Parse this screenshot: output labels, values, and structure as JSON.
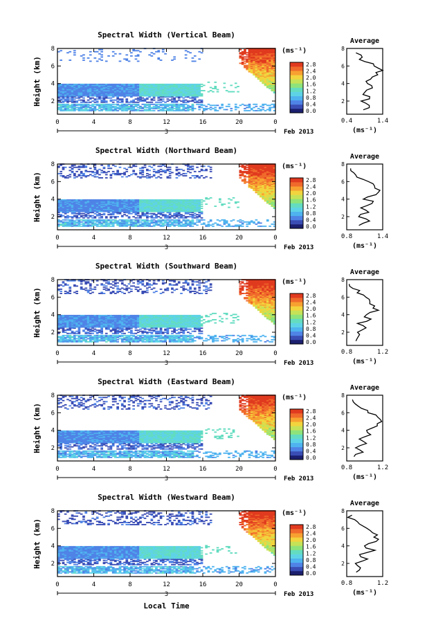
{
  "colors": {
    "scale": [
      "#1b1f6e",
      "#3a4db5",
      "#4f83e6",
      "#4fb3ef",
      "#5ed3e6",
      "#63dcc0",
      "#8ee37a",
      "#c6e257",
      "#f2d43e",
      "#f7a131",
      "#f06a2b",
      "#e03a1f"
    ],
    "axis": "#000000"
  },
  "common": {
    "colorbar_unit": "(ms⁻¹)",
    "colorbar_ticks": [
      "2.8",
      "2.4",
      "2.0",
      "1.6",
      "1.2",
      "0.8",
      "0.4",
      "0.0"
    ],
    "date_label": "Feb 2013",
    "day_label": "3",
    "avg_title": "Average",
    "avg_unit": "(ms⁻¹)",
    "xlabel": "Local Time",
    "ylabel": "Height (km)"
  },
  "chart_data": [
    {
      "type": "heatmap",
      "title": "Spectral Width (Vertical Beam)",
      "ylabel": "Height (km)",
      "x_ticks": [
        "0",
        "4",
        "8",
        "12",
        "16",
        "20",
        "0"
      ],
      "y_ticks": [
        "8",
        "6",
        "4",
        "2"
      ],
      "ylim": [
        0.5,
        8
      ],
      "xlim": [
        0,
        24
      ],
      "colorbar": {
        "unit": "(ms⁻¹)",
        "range": [
          0.0,
          2.8
        ]
      },
      "average_profile": {
        "title": "Average",
        "x_ticks": [
          "0.4",
          "1.4"
        ],
        "xlim": [
          0.4,
          1.4
        ],
        "y_ticks": [
          "8",
          "6",
          "4",
          "2"
        ],
        "height_km": [
          1.0,
          1.5,
          2.0,
          2.5,
          3.0,
          3.5,
          4.0,
          4.5,
          5.0,
          5.5,
          6.0,
          6.5,
          7.0,
          7.5
        ],
        "value": [
          0.9,
          1.0,
          0.85,
          1.05,
          0.9,
          1.1,
          0.95,
          1.1,
          1.25,
          1.4,
          1.15,
          0.95,
          0.8,
          0.7
        ]
      }
    },
    {
      "type": "heatmap",
      "title": "Spectral Width (Northward Beam)",
      "ylabel": "Height (km)",
      "x_ticks": [
        "0",
        "4",
        "8",
        "12",
        "16",
        "20",
        "0"
      ],
      "y_ticks": [
        "8",
        "6",
        "4",
        "2"
      ],
      "ylim": [
        0.5,
        8
      ],
      "xlim": [
        0,
        24
      ],
      "colorbar": {
        "unit": "(ms⁻¹)",
        "range": [
          0.0,
          2.8
        ]
      },
      "average_profile": {
        "title": "Average",
        "x_ticks": [
          "0.8",
          "1.4"
        ],
        "xlim": [
          0.8,
          1.4
        ],
        "y_ticks": [
          "8",
          "6",
          "4",
          "2"
        ],
        "height_km": [
          1.0,
          1.5,
          2.0,
          2.5,
          3.0,
          3.5,
          4.0,
          4.5,
          5.0,
          5.5,
          6.0,
          6.5,
          7.0,
          7.5
        ],
        "value": [
          1.0,
          1.15,
          1.0,
          1.2,
          1.05,
          1.25,
          1.1,
          1.3,
          1.35,
          1.3,
          1.15,
          1.0,
          0.9,
          0.85
        ]
      }
    },
    {
      "type": "heatmap",
      "title": "Spectral Width (Southward Beam)",
      "ylabel": "Height (km)",
      "x_ticks": [
        "0",
        "4",
        "8",
        "12",
        "16",
        "20",
        "0"
      ],
      "y_ticks": [
        "8",
        "6",
        "4",
        "2"
      ],
      "ylim": [
        0.5,
        8
      ],
      "xlim": [
        0,
        24
      ],
      "colorbar": {
        "unit": "(ms⁻¹)",
        "range": [
          0.0,
          2.8
        ]
      },
      "average_profile": {
        "title": "Average",
        "x_ticks": [
          "0.8",
          "1.2"
        ],
        "xlim": [
          0.8,
          1.2
        ],
        "y_ticks": [
          "8",
          "6",
          "4",
          "2"
        ],
        "height_km": [
          1.0,
          1.5,
          2.0,
          2.5,
          3.0,
          3.5,
          4.0,
          4.5,
          5.0,
          5.5,
          6.0,
          6.5,
          7.0,
          7.5
        ],
        "value": [
          0.9,
          0.95,
          0.9,
          1.0,
          0.92,
          1.05,
          1.0,
          1.15,
          1.1,
          1.05,
          1.0,
          0.93,
          0.88,
          0.84
        ]
      }
    },
    {
      "type": "heatmap",
      "title": "Spectral Width (Eastward Beam)",
      "ylabel": "Height (km)",
      "x_ticks": [
        "0",
        "4",
        "8",
        "12",
        "16",
        "20",
        "0"
      ],
      "y_ticks": [
        "8",
        "6",
        "4",
        "2"
      ],
      "ylim": [
        0.5,
        8
      ],
      "xlim": [
        0,
        24
      ],
      "colorbar": {
        "unit": "(ms⁻¹)",
        "range": [
          0.0,
          2.8
        ]
      },
      "average_profile": {
        "title": "Average",
        "x_ticks": [
          "0.8",
          "1.2"
        ],
        "xlim": [
          0.8,
          1.2
        ],
        "y_ticks": [
          "8",
          "6",
          "4",
          "2"
        ],
        "height_km": [
          1.0,
          1.5,
          2.0,
          2.5,
          3.0,
          3.5,
          4.0,
          4.5,
          5.0,
          5.5,
          6.0,
          6.5,
          7.0,
          7.5
        ],
        "value": [
          0.9,
          0.97,
          0.9,
          1.02,
          0.95,
          1.08,
          1.0,
          1.12,
          1.18,
          1.15,
          1.05,
          0.95,
          0.88,
          0.85
        ]
      }
    },
    {
      "type": "heatmap",
      "title": "Spectral Width (Westward Beam)",
      "ylabel": "Height (km)",
      "x_ticks": [
        "0",
        "4",
        "8",
        "12",
        "16",
        "20",
        "0"
      ],
      "y_ticks": [
        "8",
        "6",
        "4",
        "2"
      ],
      "ylim": [
        0.5,
        8
      ],
      "xlim": [
        0,
        24
      ],
      "colorbar": {
        "unit": "(ms⁻¹)",
        "range": [
          0.0,
          2.8
        ]
      },
      "average_profile": {
        "title": "Average",
        "x_ticks": [
          "0.8",
          "1.2"
        ],
        "xlim": [
          0.8,
          1.2
        ],
        "y_ticks": [
          "8",
          "6",
          "4",
          "2"
        ],
        "height_km": [
          1.0,
          1.5,
          2.0,
          2.5,
          3.0,
          3.5,
          4.0,
          4.5,
          5.0,
          5.5,
          6.0,
          6.5,
          7.0,
          7.5
        ],
        "value": [
          0.9,
          0.95,
          0.92,
          1.05,
          0.95,
          1.1,
          1.0,
          1.15,
          1.12,
          1.08,
          1.02,
          0.94,
          0.88,
          0.84
        ]
      }
    }
  ]
}
